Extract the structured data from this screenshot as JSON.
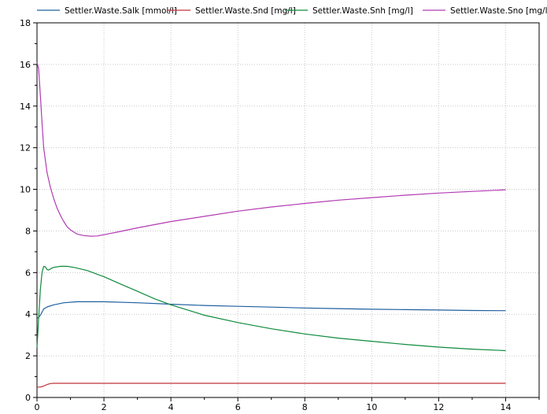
{
  "chart_data": {
    "type": "line",
    "title": "",
    "xlabel": "",
    "ylabel": "",
    "xlim": [
      0,
      15
    ],
    "ylim": [
      0,
      18
    ],
    "xticks": [
      0,
      2,
      4,
      6,
      8,
      10,
      12,
      14
    ],
    "yticks": [
      0,
      2,
      4,
      6,
      8,
      10,
      12,
      14,
      16,
      18
    ],
    "grid": true,
    "legend_position": "top",
    "series": [
      {
        "name": "Settler.Waste.Salk [mmol/l]",
        "color": "#1f5fa0",
        "x": [
          0,
          0.05,
          0.1,
          0.15,
          0.2,
          0.3,
          0.5,
          0.8,
          1.2,
          2,
          3,
          4,
          5,
          6,
          7,
          8,
          9,
          10,
          11,
          12,
          13,
          14
        ],
        "y": [
          3.8,
          3.85,
          3.95,
          4.1,
          4.25,
          4.35,
          4.45,
          4.55,
          4.6,
          4.6,
          4.55,
          4.48,
          4.42,
          4.38,
          4.34,
          4.3,
          4.27,
          4.24,
          4.22,
          4.2,
          4.18,
          4.17
        ]
      },
      {
        "name": "Settler.Waste.Snd [mg/l]",
        "color": "#c0303a",
        "x": [
          0,
          0.1,
          0.2,
          0.3,
          0.4,
          0.5,
          1,
          2,
          4,
          6,
          8,
          10,
          12,
          14
        ],
        "y": [
          0.5,
          0.5,
          0.55,
          0.62,
          0.67,
          0.68,
          0.68,
          0.68,
          0.68,
          0.68,
          0.68,
          0.68,
          0.68,
          0.68
        ]
      },
      {
        "name": "Settler.Waste.Snh [mg/l]",
        "color": "#0f8a3c",
        "x": [
          0,
          0.05,
          0.1,
          0.15,
          0.2,
          0.25,
          0.3,
          0.35,
          0.4,
          0.5,
          0.7,
          0.9,
          1.1,
          1.5,
          2,
          2.5,
          3,
          3.5,
          4,
          5,
          6,
          7,
          8,
          9,
          10,
          11,
          12,
          13,
          14
        ],
        "y": [
          2.4,
          3.8,
          5.2,
          6.0,
          6.3,
          6.28,
          6.15,
          6.12,
          6.18,
          6.25,
          6.3,
          6.3,
          6.25,
          6.1,
          5.8,
          5.45,
          5.1,
          4.75,
          4.45,
          3.95,
          3.6,
          3.3,
          3.05,
          2.85,
          2.7,
          2.55,
          2.42,
          2.32,
          2.25
        ]
      },
      {
        "name": "Settler.Waste.Sno [mg/l]",
        "color": "#b23ab2",
        "x": [
          0,
          0.05,
          0.1,
          0.15,
          0.2,
          0.3,
          0.4,
          0.5,
          0.6,
          0.7,
          0.8,
          0.9,
          1.0,
          1.2,
          1.4,
          1.6,
          1.8,
          2,
          2.5,
          3,
          4,
          5,
          6,
          7,
          8,
          9,
          10,
          11,
          12,
          13,
          14
        ],
        "y": [
          16.1,
          15.8,
          14.5,
          13.2,
          12.0,
          10.8,
          10.1,
          9.55,
          9.1,
          8.75,
          8.45,
          8.2,
          8.05,
          7.85,
          7.78,
          7.75,
          7.76,
          7.82,
          7.98,
          8.15,
          8.45,
          8.7,
          8.95,
          9.15,
          9.32,
          9.48,
          9.6,
          9.72,
          9.82,
          9.9,
          9.98
        ]
      }
    ]
  }
}
